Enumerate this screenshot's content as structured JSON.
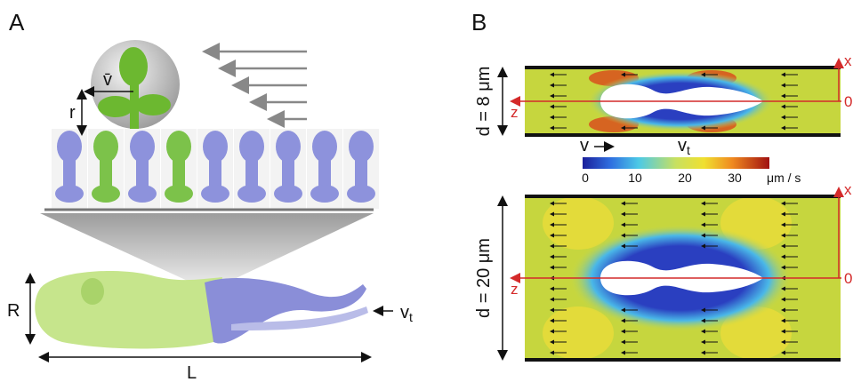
{
  "panel_a": {
    "label": "A",
    "velocity": "v̄",
    "radius": "r",
    "cell_radius": "R",
    "cell_length": "L",
    "terminal_velocity": {
      "main": "v",
      "sub": "t"
    }
  },
  "panel_b": {
    "label": "B",
    "top_channel": {
      "width_label": "d = 8 μm",
      "axis_z": "z",
      "axis_x": "x",
      "origin": "0"
    },
    "bottom_channel": {
      "width_label": "d = 20 μm",
      "axis_z": "z",
      "axis_x": "x",
      "origin": "0"
    },
    "colorbar": {
      "flow_label": "v",
      "terminal_label": {
        "main": "v",
        "sub": "t"
      },
      "ticks": [
        "0",
        "10",
        "20",
        "30"
      ],
      "unit": "μm / s"
    }
  }
}
